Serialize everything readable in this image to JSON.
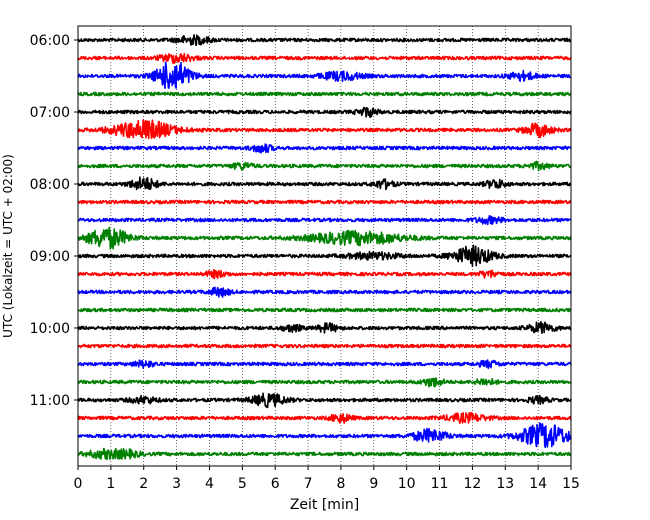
{
  "chart_data": {
    "type": "line",
    "title": "",
    "xlabel": "Zeit  [min]",
    "ylabel": "UTC (Lokalzeit = UTC + 02:00)",
    "xlim": [
      0,
      15
    ],
    "x_ticks": [
      "0",
      "1",
      "2",
      "3",
      "4",
      "5",
      "6",
      "7",
      "8",
      "9",
      "10",
      "11",
      "12",
      "13",
      "14",
      "15"
    ],
    "y_ticks": [
      "06:00",
      "07:00",
      "08:00",
      "09:00",
      "10:00",
      "11:00"
    ],
    "grid": "vertical-dotted",
    "trace_interval_minutes": 15,
    "colors": [
      "#000000",
      "#ff0000",
      "#0000ff",
      "#008000"
    ],
    "series": [
      {
        "start": "06:00",
        "color": "#000000",
        "events": [
          {
            "t": 3.5,
            "amp": 4,
            "w": 0.5
          }
        ]
      },
      {
        "start": "06:15",
        "color": "#ff0000",
        "events": [
          {
            "t": 3.0,
            "amp": 4,
            "w": 0.5
          }
        ]
      },
      {
        "start": "06:30",
        "color": "#0000ff",
        "events": [
          {
            "t": 2.9,
            "amp": 15,
            "w": 0.5
          },
          {
            "t": 8.0,
            "amp": 4,
            "w": 0.6
          },
          {
            "t": 13.5,
            "amp": 4,
            "w": 0.4
          }
        ]
      },
      {
        "start": "06:45",
        "color": "#008000",
        "events": []
      },
      {
        "start": "07:00",
        "color": "#000000",
        "events": [
          {
            "t": 8.8,
            "amp": 4,
            "w": 0.3
          }
        ]
      },
      {
        "start": "07:15",
        "color": "#ff0000",
        "events": [
          {
            "t": 2.0,
            "amp": 9,
            "w": 0.9
          },
          {
            "t": 14.0,
            "amp": 6,
            "w": 0.4
          }
        ]
      },
      {
        "start": "07:30",
        "color": "#0000ff",
        "events": [
          {
            "t": 5.6,
            "amp": 4,
            "w": 0.3
          }
        ]
      },
      {
        "start": "07:45",
        "color": "#008000",
        "events": [
          {
            "t": 5.0,
            "amp": 3,
            "w": 0.3
          },
          {
            "t": 14.0,
            "amp": 3,
            "w": 0.3
          }
        ]
      },
      {
        "start": "08:00",
        "color": "#000000",
        "events": [
          {
            "t": 2.0,
            "amp": 6,
            "w": 0.4
          },
          {
            "t": 9.3,
            "amp": 4,
            "w": 0.3
          },
          {
            "t": 12.7,
            "amp": 4,
            "w": 0.3
          }
        ]
      },
      {
        "start": "08:15",
        "color": "#ff0000",
        "events": []
      },
      {
        "start": "08:30",
        "color": "#0000ff",
        "events": [
          {
            "t": 12.5,
            "amp": 3,
            "w": 0.4
          }
        ]
      },
      {
        "start": "08:45",
        "color": "#008000",
        "events": [
          {
            "t": 0.9,
            "amp": 10,
            "w": 0.6
          },
          {
            "t": 8.5,
            "amp": 6,
            "w": 1.4
          }
        ]
      },
      {
        "start": "09:00",
        "color": "#000000",
        "events": [
          {
            "t": 12.0,
            "amp": 9,
            "w": 0.6
          },
          {
            "t": 9.0,
            "amp": 3,
            "w": 0.8
          }
        ]
      },
      {
        "start": "09:15",
        "color": "#ff0000",
        "events": [
          {
            "t": 4.2,
            "amp": 3,
            "w": 0.3
          },
          {
            "t": 12.5,
            "amp": 3,
            "w": 0.3
          }
        ]
      },
      {
        "start": "09:30",
        "color": "#0000ff",
        "events": [
          {
            "t": 4.3,
            "amp": 4,
            "w": 0.3
          }
        ]
      },
      {
        "start": "09:45",
        "color": "#008000",
        "events": []
      },
      {
        "start": "10:00",
        "color": "#000000",
        "events": [
          {
            "t": 7.6,
            "amp": 4,
            "w": 0.3
          },
          {
            "t": 14.1,
            "amp": 5,
            "w": 0.4
          },
          {
            "t": 6.5,
            "amp": 3,
            "w": 0.3
          }
        ]
      },
      {
        "start": "10:15",
        "color": "#ff0000",
        "events": []
      },
      {
        "start": "10:30",
        "color": "#0000ff",
        "events": [
          {
            "t": 2.0,
            "amp": 3,
            "w": 0.3
          },
          {
            "t": 12.5,
            "amp": 3,
            "w": 0.3
          }
        ]
      },
      {
        "start": "10:45",
        "color": "#008000",
        "events": [
          {
            "t": 10.8,
            "amp": 4,
            "w": 0.3
          },
          {
            "t": 12.4,
            "amp": 3,
            "w": 0.3
          }
        ]
      },
      {
        "start": "11:00",
        "color": "#000000",
        "events": [
          {
            "t": 5.8,
            "amp": 6,
            "w": 0.5
          },
          {
            "t": 2.0,
            "amp": 3,
            "w": 0.4
          },
          {
            "t": 14.0,
            "amp": 3,
            "w": 0.3
          }
        ]
      },
      {
        "start": "11:15",
        "color": "#ff0000",
        "events": [
          {
            "t": 8.0,
            "amp": 4,
            "w": 0.3
          },
          {
            "t": 11.8,
            "amp": 4,
            "w": 0.6
          }
        ]
      },
      {
        "start": "11:30",
        "color": "#0000ff",
        "events": [
          {
            "t": 10.7,
            "amp": 6,
            "w": 0.5
          },
          {
            "t": 14.2,
            "amp": 12,
            "w": 0.7
          }
        ]
      },
      {
        "start": "11:45",
        "color": "#008000",
        "events": [
          {
            "t": 0.8,
            "amp": 4,
            "w": 0.5
          },
          {
            "t": 1.5,
            "amp": 3,
            "w": 0.4
          }
        ]
      }
    ]
  }
}
